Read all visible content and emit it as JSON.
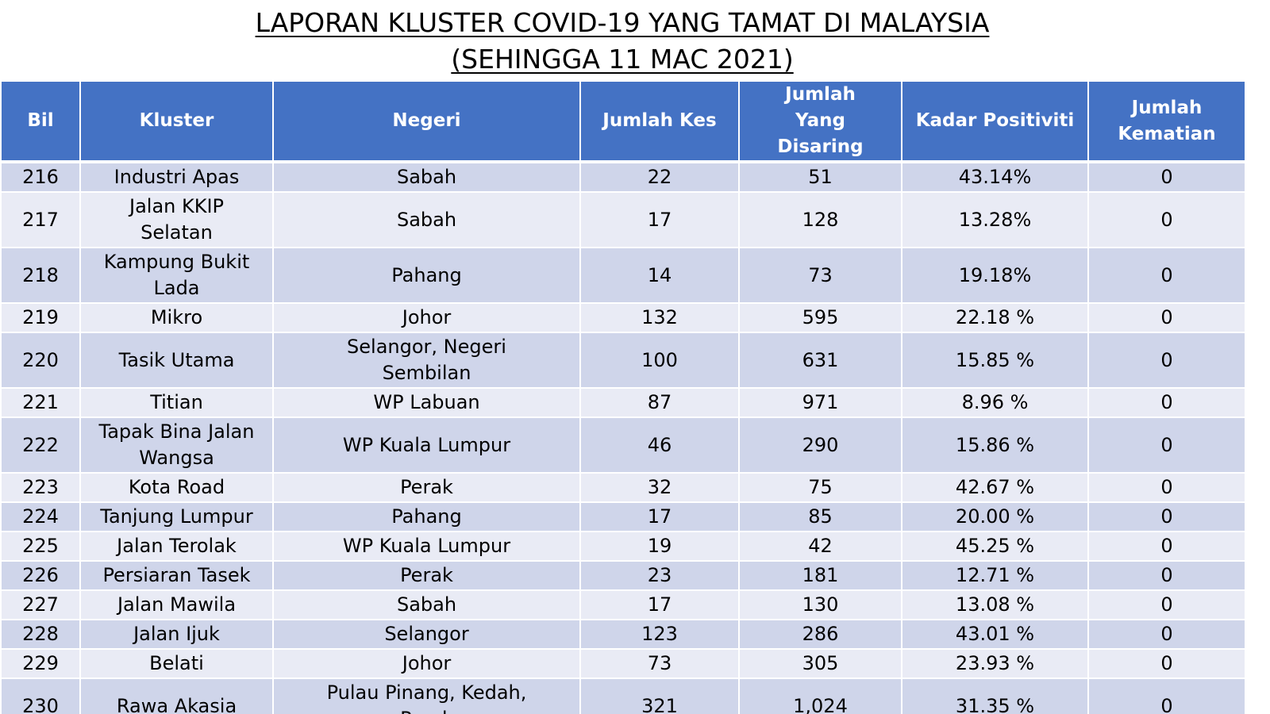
{
  "title": {
    "line1": "LAPORAN KLUSTER COVID-19 YANG TAMAT DI MALAYSIA",
    "line2": "(SEHINGGA  11 MAC 2021)"
  },
  "table": {
    "headers": [
      "Bil",
      "Kluster",
      "Negeri",
      "Jumlah Kes",
      "Jumlah Yang Disaring",
      "Kadar Positiviti",
      "Jumlah Kematian"
    ],
    "rows": [
      [
        "216",
        "Industri Apas",
        "Sabah",
        "22",
        "51",
        "43.14%",
        "0"
      ],
      [
        "217",
        "Jalan KKIP Selatan",
        "Sabah",
        "17",
        "128",
        "13.28%",
        "0"
      ],
      [
        "218",
        "Kampung Bukit Lada",
        "Pahang",
        "14",
        "73",
        "19.18%",
        "0"
      ],
      [
        "219",
        "Mikro",
        "Johor",
        "132",
        "595",
        "22.18 %",
        "0"
      ],
      [
        "220",
        "Tasik Utama",
        "Selangor, Negeri Sembilan",
        "100",
        "631",
        "15.85 %",
        "0"
      ],
      [
        "221",
        "Titian",
        "WP Labuan",
        "87",
        "971",
        "8.96 %",
        "0"
      ],
      [
        "222",
        "Tapak Bina Jalan Wangsa",
        "WP Kuala Lumpur",
        "46",
        "290",
        "15.86 %",
        "0"
      ],
      [
        "223",
        "Kota Road",
        "Perak",
        "32",
        "75",
        "42.67 %",
        "0"
      ],
      [
        "224",
        "Tanjung Lumpur",
        "Pahang",
        "17",
        "85",
        "20.00 %",
        "0"
      ],
      [
        "225",
        "Jalan Terolak",
        "WP Kuala Lumpur",
        "19",
        "42",
        "45.25 %",
        "0"
      ],
      [
        "226",
        "Persiaran Tasek",
        "Perak",
        "23",
        "181",
        "12.71 %",
        "0"
      ],
      [
        "227",
        "Jalan Mawila",
        "Sabah",
        "17",
        "130",
        "13.08 %",
        "0"
      ],
      [
        "228",
        "Jalan Ijuk",
        "Selangor",
        "123",
        "286",
        "43.01 %",
        "0"
      ],
      [
        "229",
        "Belati",
        "Johor",
        "73",
        "305",
        "23.93 %",
        "0"
      ],
      [
        "230",
        "Rawa Akasia",
        "Pulau Pinang, Kedah, Perak",
        "321",
        "1,024",
        "31.35 %",
        "0"
      ]
    ]
  }
}
